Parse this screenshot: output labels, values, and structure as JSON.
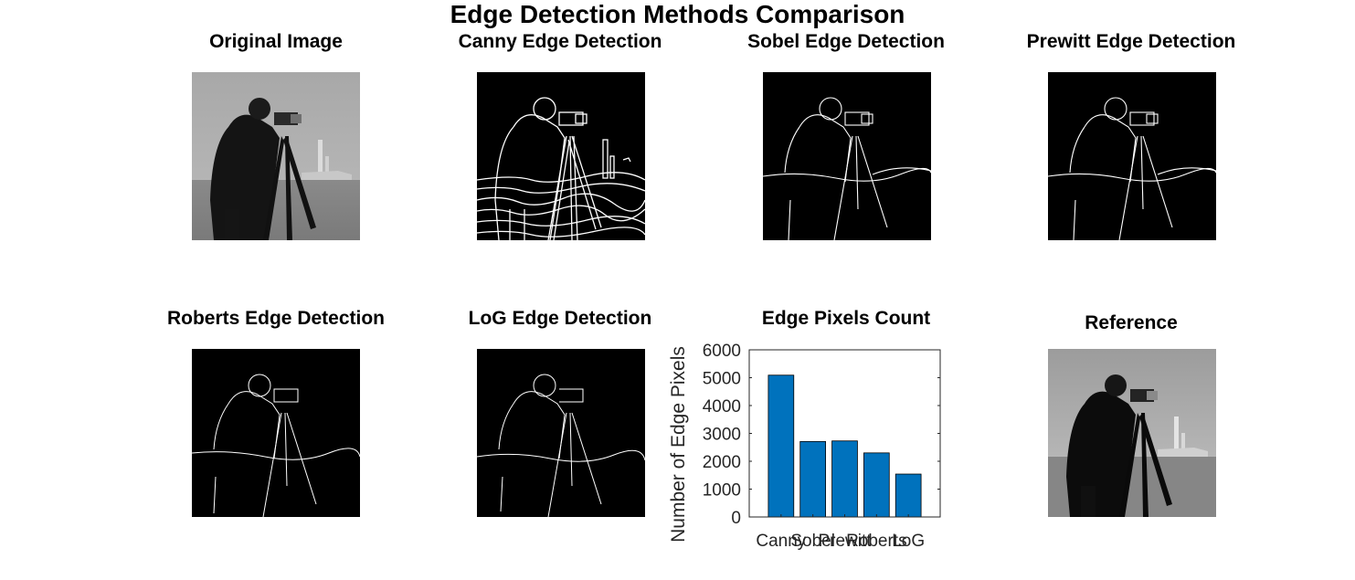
{
  "figure": {
    "title": "Edge Detection Methods Comparison"
  },
  "panels": [
    {
      "title": "Original Image",
      "kind": "grayscale-photo"
    },
    {
      "title": "Canny Edge Detection",
      "kind": "edge-map"
    },
    {
      "title": "Sobel Edge Detection",
      "kind": "edge-map"
    },
    {
      "title": "Prewitt Edge Detection",
      "kind": "edge-map"
    },
    {
      "title": "Roberts Edge Detection",
      "kind": "edge-map"
    },
    {
      "title": "LoG Edge Detection",
      "kind": "edge-map"
    },
    {
      "title": "Edge Pixels Count",
      "kind": "bar-chart"
    },
    {
      "title": "Reference",
      "kind": "grayscale-photo"
    }
  ],
  "chart_data": {
    "type": "bar",
    "title": "Edge Pixels Count",
    "xlabel": "",
    "ylabel": "Number of Edge Pixels",
    "categories": [
      "Canny",
      "Sobel",
      "Prewitt",
      "Roberts",
      "LoG"
    ],
    "values": [
      5090,
      2710,
      2730,
      2300,
      1540
    ],
    "ylim": [
      0,
      6000
    ],
    "yticks": [
      0,
      1000,
      2000,
      3000,
      4000,
      5000,
      6000
    ],
    "bar_color": "#0072BD",
    "grid": false
  }
}
